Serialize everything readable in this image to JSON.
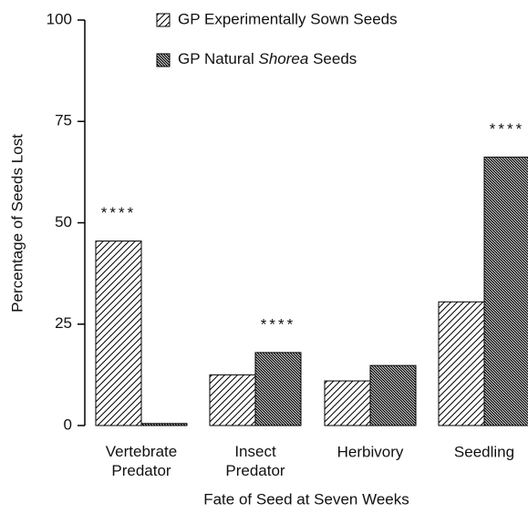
{
  "chart_data": {
    "type": "bar",
    "x_label": "Fate of Seed at Seven Weeks",
    "y_label": "Percentage of Seeds Lost",
    "categories": [
      "Vertebrate Predator",
      "Insect Predator",
      "Herbivory",
      "Seedling"
    ],
    "series": [
      {
        "name": "GP Experimentally Sown Seeds",
        "color": "#000000",
        "pattern": "light-hatch",
        "values": [
          45.5,
          12.5,
          11,
          30.5
        ]
      },
      {
        "name": "GP Natural Shorea Seeds",
        "color": "#000000",
        "pattern": "dense-hatch",
        "italic_word": "Shorea",
        "values": [
          0.5,
          18,
          14.8,
          66.2
        ]
      }
    ],
    "annotations": [
      {
        "text": "****",
        "category": "Vertebrate Predator",
        "series": "GP Experimentally Sown Seeds"
      },
      {
        "text": "****",
        "category": "Insect Predator",
        "series": "GP Natural Shorea Seeds"
      },
      {
        "text": "****",
        "category": "Seedling",
        "series": "GP Natural Shorea Seeds"
      }
    ],
    "ylim": [
      0,
      100
    ],
    "yticks": [
      0,
      25,
      50,
      75,
      100
    ],
    "legend": "top"
  }
}
